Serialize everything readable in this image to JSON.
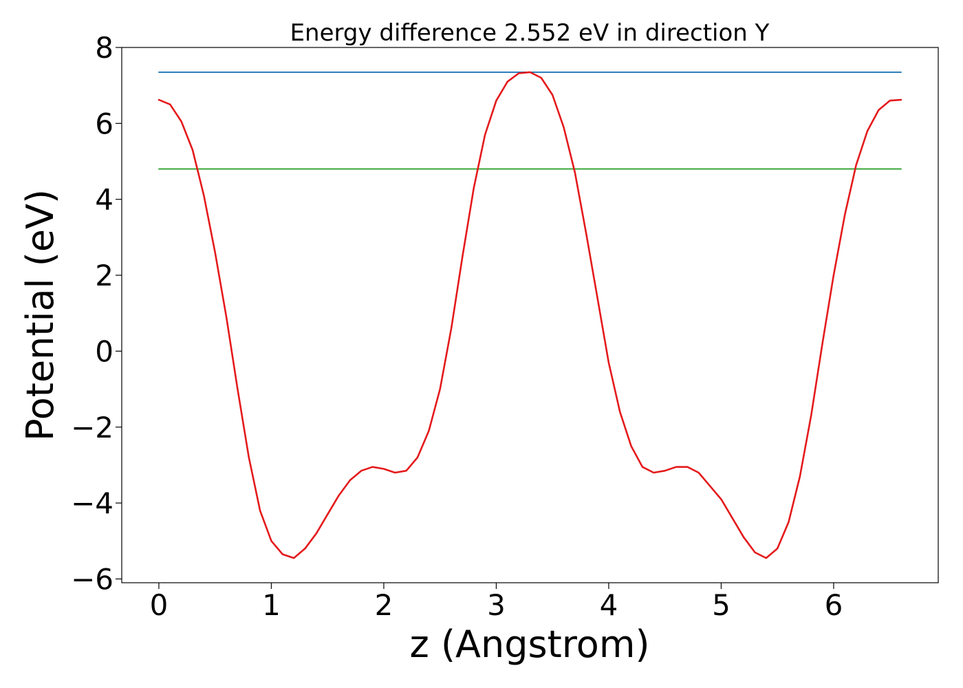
{
  "chart_data": {
    "type": "line",
    "title": "Energy difference 2.552 eV in direction Y",
    "xlabel": "z (Angstrom)",
    "ylabel": "Potential (eV)",
    "xlim": [
      -0.33,
      6.93
    ],
    "ylim": [
      -6.1,
      8.0
    ],
    "x_ticks": [
      0,
      1,
      2,
      3,
      4,
      5,
      6
    ],
    "x_tick_labels": [
      "0",
      "1",
      "2",
      "3",
      "4",
      "5",
      "6"
    ],
    "y_ticks": [
      -6,
      -4,
      -2,
      0,
      2,
      4,
      6,
      8
    ],
    "y_tick_labels": [
      "−6",
      "−4",
      "−2",
      "0",
      "2",
      "4",
      "6",
      "8"
    ],
    "grid": false,
    "series": [
      {
        "color": "#1f77b4",
        "x": [
          0.0,
          6.6
        ],
        "y": [
          7.35,
          7.35
        ]
      },
      {
        "color": "#2ca02c",
        "x": [
          0.0,
          6.6
        ],
        "y": [
          4.8,
          4.8
        ]
      },
      {
        "color": "#e41a1c",
        "x": [
          0.0,
          0.1,
          0.2,
          0.3,
          0.4,
          0.5,
          0.6,
          0.7,
          0.8,
          0.9,
          1.0,
          1.1,
          1.2,
          1.3,
          1.4,
          1.5,
          1.6,
          1.7,
          1.8,
          1.9,
          2.0,
          2.1,
          2.2,
          2.3,
          2.4,
          2.5,
          2.6,
          2.7,
          2.8,
          2.9,
          3.0,
          3.1,
          3.2,
          3.3,
          3.4,
          3.5,
          3.6,
          3.7,
          3.8,
          3.9,
          4.0,
          4.1,
          4.2,
          4.3,
          4.4,
          4.5,
          4.6,
          4.7,
          4.8,
          4.9,
          5.0,
          5.1,
          5.2,
          5.3,
          5.4,
          5.5,
          5.6,
          5.7,
          5.8,
          5.9,
          6.0,
          6.1,
          6.2,
          6.3,
          6.4,
          6.5,
          6.6
        ],
        "y": [
          6.62,
          6.5,
          6.05,
          5.3,
          4.1,
          2.6,
          0.9,
          -1.0,
          -2.8,
          -4.2,
          -5.0,
          -5.35,
          -5.45,
          -5.2,
          -4.8,
          -4.3,
          -3.8,
          -3.4,
          -3.15,
          -3.05,
          -3.1,
          -3.2,
          -3.15,
          -2.8,
          -2.1,
          -1.0,
          0.6,
          2.5,
          4.3,
          5.7,
          6.6,
          7.1,
          7.32,
          7.35,
          7.2,
          6.75,
          5.9,
          4.7,
          3.1,
          1.4,
          -0.3,
          -1.6,
          -2.5,
          -3.05,
          -3.2,
          -3.15,
          -3.05,
          -3.05,
          -3.2,
          -3.55,
          -3.9,
          -4.4,
          -4.9,
          -5.3,
          -5.45,
          -5.2,
          -4.5,
          -3.3,
          -1.7,
          0.2,
          2.0,
          3.6,
          4.9,
          5.8,
          6.35,
          6.6,
          6.62
        ]
      }
    ]
  }
}
